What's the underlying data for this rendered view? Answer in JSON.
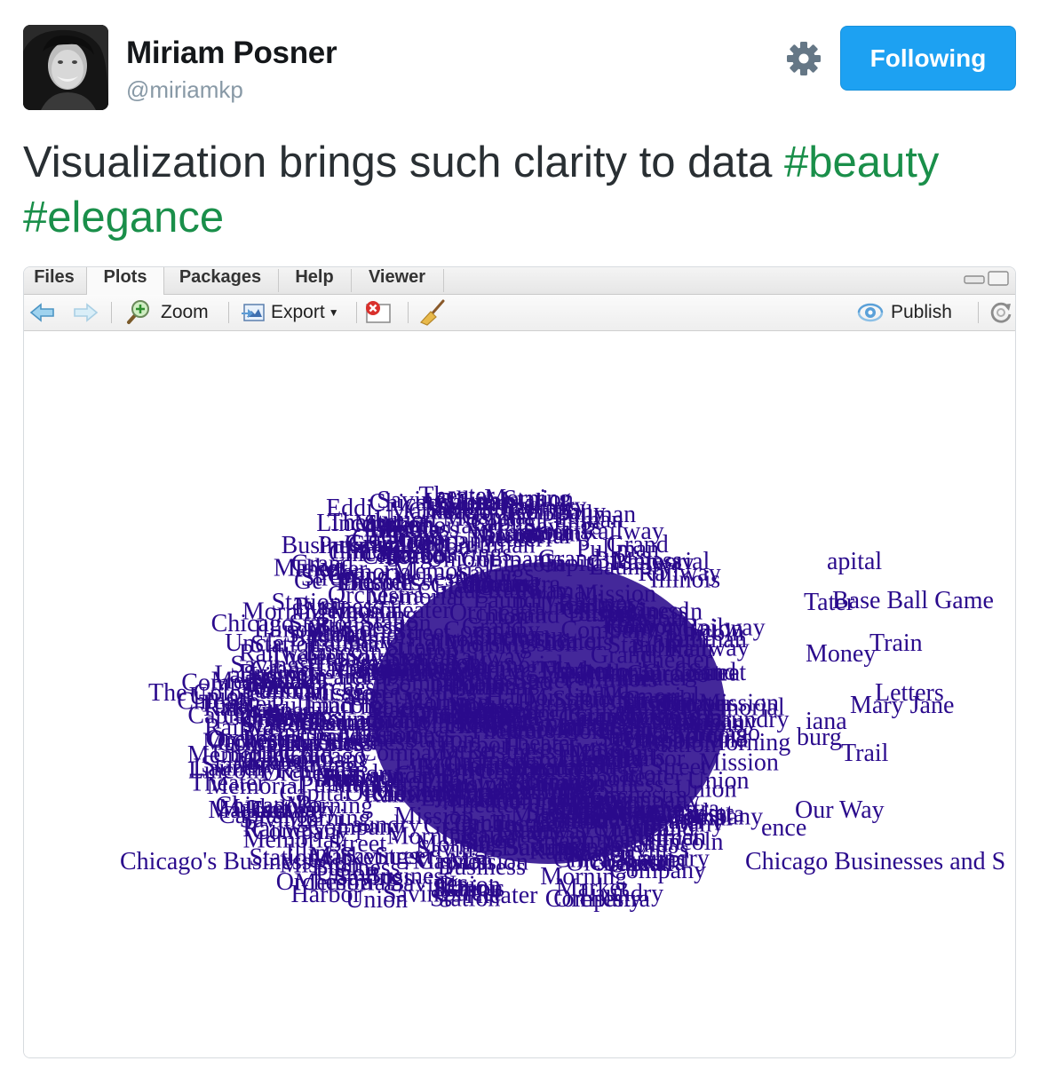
{
  "tweet": {
    "author_name": "Miriam Posner",
    "handle": "@miriamkp",
    "follow_label": "Following",
    "text": "Visualization brings such clarity to data ",
    "hashtags": [
      "#beauty",
      "#elegance"
    ]
  },
  "icons": {
    "settings": "gear-icon",
    "back": "back-arrow-icon",
    "forward": "forward-arrow-icon",
    "zoom": "zoom-icon",
    "export": "export-icon",
    "remove": "remove-plot-icon",
    "clear": "broom-icon",
    "publish": "publish-icon",
    "refresh": "refresh-icon"
  },
  "colors": {
    "follow_button": "#1da1f2",
    "hashtag": "#1a8f4a",
    "plot_text": "#2a0a8c"
  },
  "rstudio": {
    "tabs": [
      "Files",
      "Plots",
      "Packages",
      "Help",
      "Viewer"
    ],
    "active_tab": "Plots",
    "toolbar": {
      "zoom_label": "Zoom",
      "export_label": "Export",
      "publish_label": "Publish"
    }
  },
  "chart_data": {
    "type": "scatter",
    "description_of_marks": "text labels",
    "labels": [
      "Chicago's Business Ac",
      "Chicago Businesses and S",
      "The Colore",
      "Uncle",
      "Jack",
      "Base Ball Game",
      "Train",
      "apital",
      "Our Way",
      "Trail",
      "Letters",
      "Mary Jane",
      "Eddi",
      "Ge",
      "Ra",
      "Tho",
      "Jim",
      "Money",
      "Tater",
      "iana",
      "burg",
      "ence"
    ]
  }
}
